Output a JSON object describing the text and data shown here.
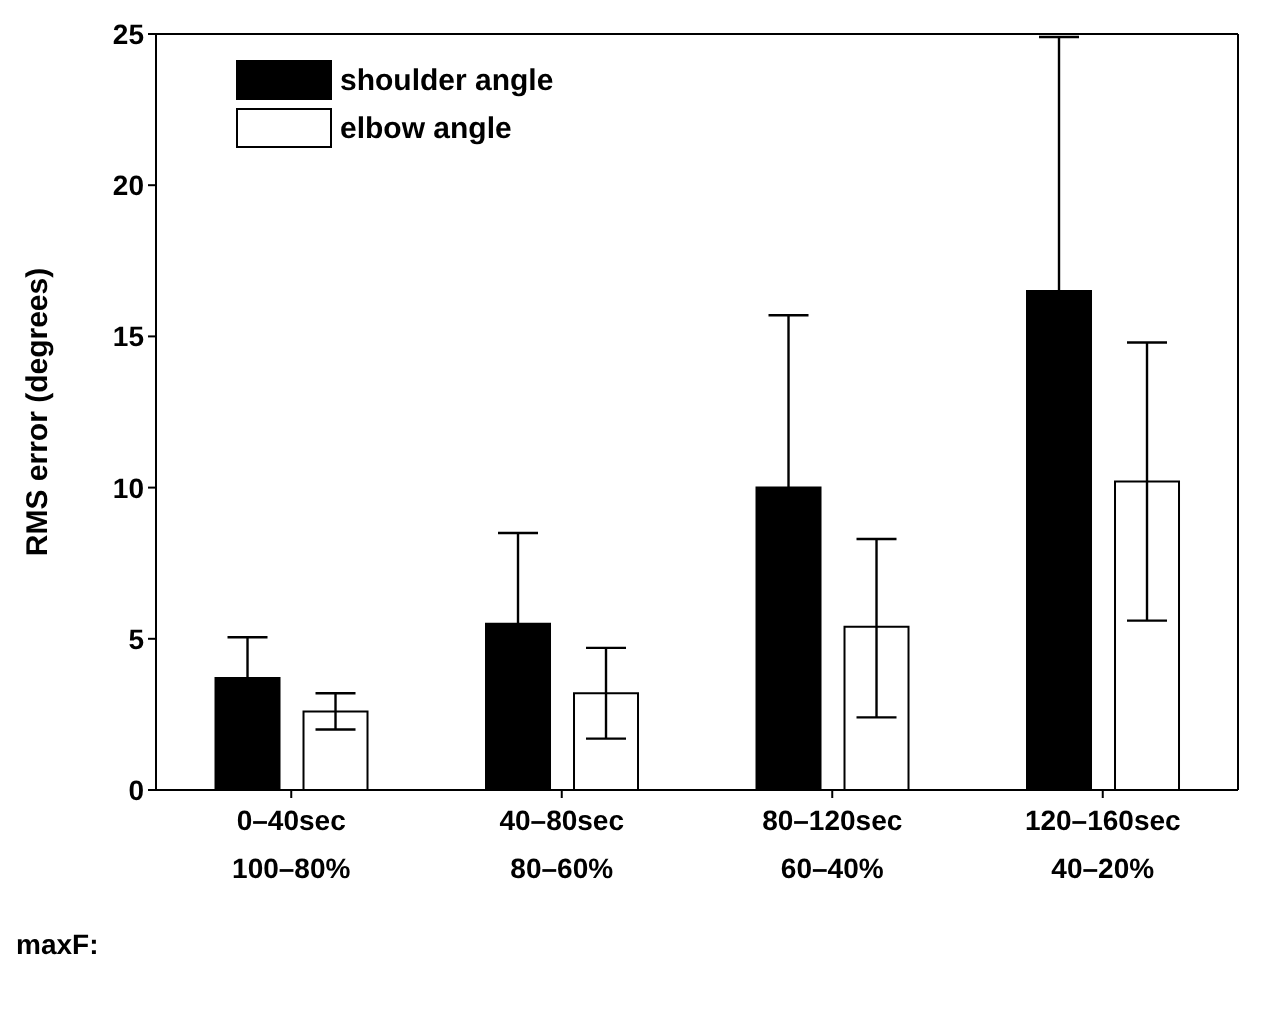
{
  "chart_data": {
    "type": "bar",
    "ylabel": "RMS error (degrees)",
    "categories": [
      "0–40sec\n100–80%",
      "40–80sec\n80–60%",
      "80–120sec\n60–40%",
      "120–160sec\n40–20%"
    ],
    "series": [
      {
        "name": "shoulder angle",
        "color": "#000000",
        "values": [
          3.7,
          5.5,
          10.0,
          16.5
        ],
        "errors": [
          1.35,
          3.0,
          5.7,
          8.4
        ]
      },
      {
        "name": "elbow angle",
        "color": "#ffffff",
        "values": [
          2.6,
          3.2,
          5.4,
          10.2
        ],
        "errors": [
          [
            2.0,
            3.2
          ],
          [
            1.7,
            4.7
          ],
          [
            2.4,
            8.3
          ],
          [
            5.6,
            14.8
          ]
        ]
      }
    ],
    "ylim": [
      0,
      25
    ],
    "yticks": [
      0,
      5,
      10,
      15,
      20,
      25
    ],
    "legend": "top left",
    "annotations": [
      "maxF:"
    ]
  }
}
